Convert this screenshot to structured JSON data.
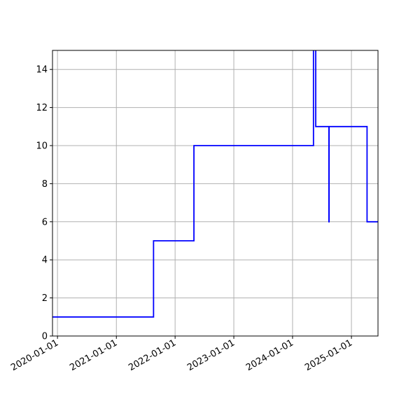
{
  "chart_data": {
    "type": "line",
    "title": "",
    "xlabel": "",
    "ylabel": "",
    "grid": true,
    "x_scale": "date",
    "xlim": [
      "2019-12-01",
      "2025-06-15"
    ],
    "ylim": [
      0,
      15
    ],
    "x_ticks": [
      "2020-01-01",
      "2021-01-01",
      "2022-01-01",
      "2023-01-01",
      "2024-01-01",
      "2025-01-01"
    ],
    "y_ticks": [
      0,
      2,
      4,
      6,
      8,
      10,
      12,
      14
    ],
    "step_style": "post",
    "series": [
      {
        "color": "#0000ff",
        "points": [
          {
            "x": "2019-12-01",
            "y": 1
          },
          {
            "x": "2021-08-20",
            "y": 5
          },
          {
            "x": "2022-04-28",
            "y": 10
          },
          {
            "x": "2024-05-10",
            "y": 18
          },
          {
            "x": "2024-05-24",
            "y": 11
          },
          {
            "x": "2024-08-14",
            "y": 6
          },
          {
            "x": "2024-08-15",
            "y": 11
          },
          {
            "x": "2025-04-08",
            "y": 6
          },
          {
            "x": "2025-06-15",
            "y": 6
          }
        ]
      }
    ]
  }
}
